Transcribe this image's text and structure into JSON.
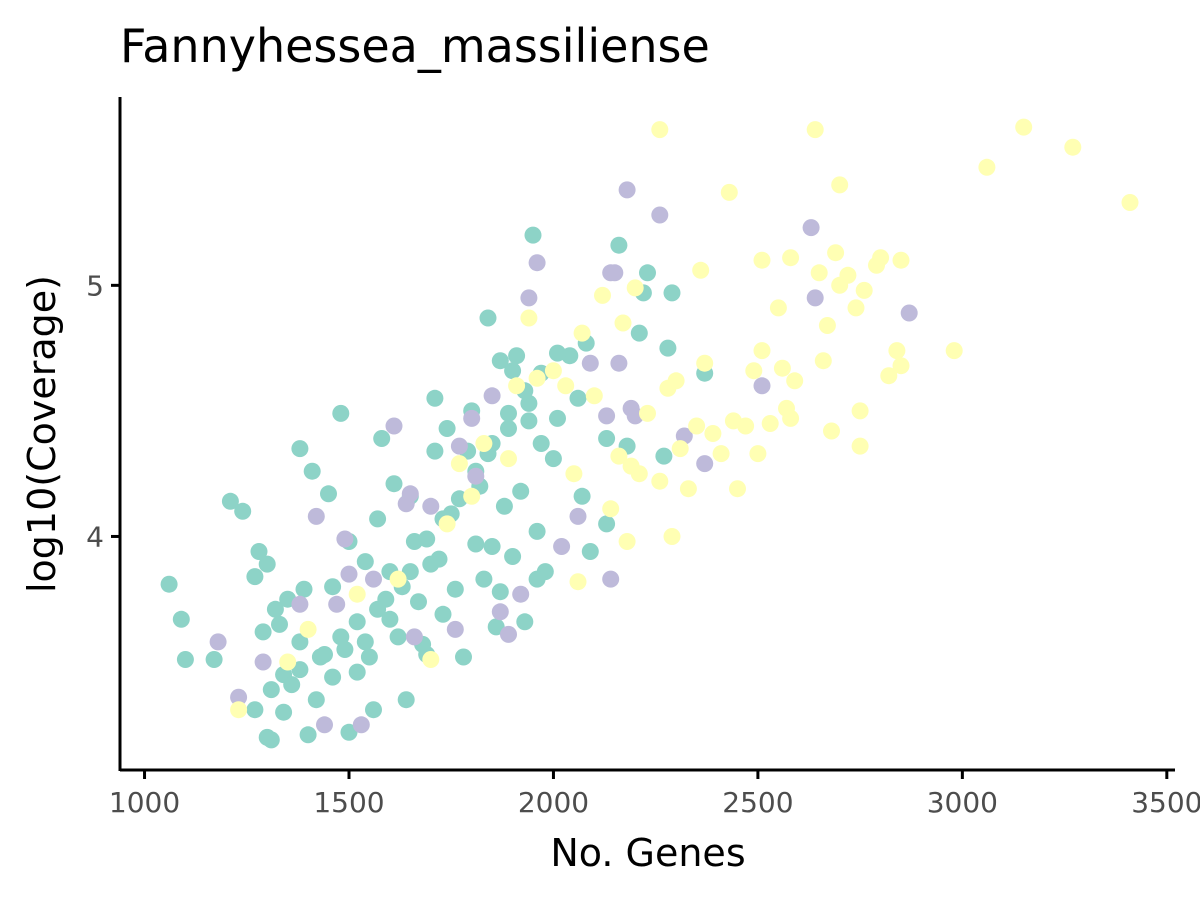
{
  "chart_data": {
    "type": "scatter",
    "title": "Fannyhessea_massiliense",
    "xlabel": "No. Genes",
    "ylabel": "log10(Coverage)",
    "xlim": [
      940,
      3520
    ],
    "ylim": [
      3.07,
      5.75
    ],
    "xticks": [
      1000,
      1500,
      2000,
      2500,
      3000,
      3500
    ],
    "xtick_labels": [
      "1000",
      "1500",
      "2000",
      "2500",
      "3000",
      "3500"
    ],
    "yticks": [
      4,
      5
    ],
    "ytick_labels": [
      "4",
      "5"
    ],
    "grid": false,
    "legend": "none",
    "series": [
      {
        "color": "#8dd3c7",
        "points": [
          [
            1060,
            3.81
          ],
          [
            1090,
            3.67
          ],
          [
            1100,
            3.51
          ],
          [
            1170,
            3.51
          ],
          [
            1210,
            4.14
          ],
          [
            1240,
            4.1
          ],
          [
            1270,
            3.84
          ],
          [
            1280,
            3.94
          ],
          [
            1300,
            3.89
          ],
          [
            1290,
            3.62
          ],
          [
            1270,
            3.31
          ],
          [
            1300,
            3.2
          ],
          [
            1310,
            3.19
          ],
          [
            1320,
            3.71
          ],
          [
            1350,
            3.75
          ],
          [
            1330,
            3.65
          ],
          [
            1340,
            3.45
          ],
          [
            1360,
            3.41
          ],
          [
            1380,
            3.58
          ],
          [
            1390,
            3.79
          ],
          [
            1380,
            4.35
          ],
          [
            1410,
            4.26
          ],
          [
            1450,
            4.17
          ],
          [
            1400,
            3.21
          ],
          [
            1420,
            3.35
          ],
          [
            1440,
            3.53
          ],
          [
            1460,
            3.8
          ],
          [
            1480,
            4.49
          ],
          [
            1490,
            3.55
          ],
          [
            1500,
            3.22
          ],
          [
            1500,
            3.98
          ],
          [
            1520,
            3.66
          ],
          [
            1540,
            3.9
          ],
          [
            1560,
            3.31
          ],
          [
            1570,
            4.07
          ],
          [
            1580,
            4.39
          ],
          [
            1590,
            3.75
          ],
          [
            1600,
            3.86
          ],
          [
            1610,
            4.21
          ],
          [
            1620,
            3.6
          ],
          [
            1640,
            3.35
          ],
          [
            1650,
            4.16
          ],
          [
            1660,
            3.98
          ],
          [
            1670,
            3.74
          ],
          [
            1690,
            3.53
          ],
          [
            1700,
            3.89
          ],
          [
            1710,
            4.55
          ],
          [
            1710,
            4.34
          ],
          [
            1720,
            3.91
          ],
          [
            1740,
            4.43
          ],
          [
            1750,
            4.09
          ],
          [
            1760,
            3.79
          ],
          [
            1780,
            3.52
          ],
          [
            1790,
            4.34
          ],
          [
            1800,
            4.5
          ],
          [
            1810,
            3.97
          ],
          [
            1820,
            4.2
          ],
          [
            1830,
            3.83
          ],
          [
            1840,
            4.33
          ],
          [
            1840,
            4.87
          ],
          [
            1860,
            3.64
          ],
          [
            1870,
            4.7
          ],
          [
            1880,
            4.12
          ],
          [
            1890,
            4.43
          ],
          [
            1900,
            4.66
          ],
          [
            1900,
            3.92
          ],
          [
            1910,
            4.72
          ],
          [
            1920,
            4.18
          ],
          [
            1930,
            3.66
          ],
          [
            1940,
            4.53
          ],
          [
            1940,
            4.46
          ],
          [
            1950,
            5.2
          ],
          [
            1960,
            4.02
          ],
          [
            1970,
            4.37
          ],
          [
            1980,
            3.86
          ],
          [
            2000,
            4.31
          ],
          [
            2010,
            4.47
          ],
          [
            2040,
            4.72
          ],
          [
            2060,
            4.55
          ],
          [
            2070,
            4.16
          ],
          [
            2080,
            4.77
          ],
          [
            2090,
            3.94
          ],
          [
            2130,
            4.39
          ],
          [
            2130,
            4.05
          ],
          [
            2160,
            5.16
          ],
          [
            2180,
            4.36
          ],
          [
            2210,
            4.81
          ],
          [
            2220,
            4.97
          ],
          [
            2230,
            5.05
          ],
          [
            2270,
            4.32
          ],
          [
            2280,
            4.75
          ],
          [
            2290,
            4.97
          ],
          [
            2370,
            4.65
          ],
          [
            1960,
            3.83
          ],
          [
            1850,
            3.96
          ],
          [
            1870,
            3.78
          ],
          [
            1730,
            3.69
          ],
          [
            1680,
            3.57
          ],
          [
            1630,
            3.8
          ],
          [
            1570,
            3.71
          ],
          [
            1540,
            3.58
          ],
          [
            1520,
            3.46
          ],
          [
            1480,
            3.6
          ],
          [
            1460,
            3.44
          ],
          [
            1430,
            3.52
          ],
          [
            1380,
            3.47
          ],
          [
            1340,
            3.3
          ],
          [
            1310,
            3.39
          ],
          [
            1550,
            3.52
          ],
          [
            1600,
            3.67
          ],
          [
            1650,
            3.86
          ],
          [
            1690,
            3.99
          ],
          [
            1730,
            4.07
          ],
          [
            1770,
            4.15
          ],
          [
            1810,
            4.26
          ],
          [
            1850,
            4.37
          ],
          [
            1890,
            4.49
          ],
          [
            1930,
            4.58
          ],
          [
            1970,
            4.65
          ],
          [
            2010,
            4.73
          ]
        ]
      },
      {
        "color": "#bebada",
        "points": [
          [
            1180,
            3.58
          ],
          [
            1230,
            3.36
          ],
          [
            1290,
            3.5
          ],
          [
            1380,
            3.73
          ],
          [
            1420,
            4.08
          ],
          [
            1440,
            3.25
          ],
          [
            1470,
            3.73
          ],
          [
            1490,
            3.99
          ],
          [
            1500,
            3.85
          ],
          [
            1530,
            3.25
          ],
          [
            1560,
            3.83
          ],
          [
            1610,
            4.44
          ],
          [
            1640,
            4.13
          ],
          [
            1650,
            4.17
          ],
          [
            1660,
            3.6
          ],
          [
            1700,
            4.12
          ],
          [
            1760,
            3.63
          ],
          [
            1770,
            4.36
          ],
          [
            1800,
            4.47
          ],
          [
            1810,
            4.24
          ],
          [
            1850,
            4.56
          ],
          [
            1870,
            3.7
          ],
          [
            1890,
            3.61
          ],
          [
            1920,
            3.77
          ],
          [
            1940,
            4.95
          ],
          [
            1960,
            5.09
          ],
          [
            2020,
            3.96
          ],
          [
            2060,
            4.08
          ],
          [
            2090,
            4.69
          ],
          [
            2130,
            4.48
          ],
          [
            2140,
            5.05
          ],
          [
            2150,
            5.05
          ],
          [
            2160,
            4.69
          ],
          [
            2180,
            5.38
          ],
          [
            2190,
            4.51
          ],
          [
            2200,
            4.48
          ],
          [
            2260,
            5.28
          ],
          [
            2320,
            4.4
          ],
          [
            2370,
            4.29
          ],
          [
            2510,
            4.6
          ],
          [
            2630,
            5.23
          ],
          [
            2640,
            4.95
          ],
          [
            2870,
            4.89
          ],
          [
            2140,
            3.83
          ]
        ]
      },
      {
        "color": "#ffffb3",
        "points": [
          [
            1230,
            3.31
          ],
          [
            1350,
            3.5
          ],
          [
            1400,
            3.63
          ],
          [
            1520,
            3.77
          ],
          [
            1620,
            3.83
          ],
          [
            1700,
            3.51
          ],
          [
            1740,
            4.05
          ],
          [
            1770,
            4.29
          ],
          [
            1800,
            4.16
          ],
          [
            1830,
            4.37
          ],
          [
            1890,
            4.31
          ],
          [
            1910,
            4.6
          ],
          [
            1940,
            4.87
          ],
          [
            1960,
            4.63
          ],
          [
            2000,
            4.66
          ],
          [
            2030,
            4.6
          ],
          [
            2050,
            4.25
          ],
          [
            2060,
            3.82
          ],
          [
            2070,
            4.81
          ],
          [
            2100,
            4.56
          ],
          [
            2120,
            4.96
          ],
          [
            2140,
            4.11
          ],
          [
            2160,
            4.32
          ],
          [
            2170,
            4.85
          ],
          [
            2180,
            3.98
          ],
          [
            2190,
            4.28
          ],
          [
            2200,
            4.99
          ],
          [
            2210,
            4.25
          ],
          [
            2230,
            4.49
          ],
          [
            2260,
            5.62
          ],
          [
            2260,
            4.22
          ],
          [
            2280,
            4.59
          ],
          [
            2290,
            4.0
          ],
          [
            2300,
            4.62
          ],
          [
            2310,
            4.35
          ],
          [
            2330,
            4.19
          ],
          [
            2350,
            4.44
          ],
          [
            2360,
            5.06
          ],
          [
            2370,
            4.69
          ],
          [
            2390,
            4.41
          ],
          [
            2410,
            4.33
          ],
          [
            2430,
            5.37
          ],
          [
            2440,
            4.46
          ],
          [
            2450,
            4.19
          ],
          [
            2470,
            4.44
          ],
          [
            2490,
            4.66
          ],
          [
            2500,
            4.33
          ],
          [
            2510,
            4.74
          ],
          [
            2510,
            5.1
          ],
          [
            2530,
            4.45
          ],
          [
            2550,
            4.91
          ],
          [
            2560,
            4.67
          ],
          [
            2570,
            4.51
          ],
          [
            2580,
            5.11
          ],
          [
            2580,
            4.47
          ],
          [
            2590,
            4.62
          ],
          [
            2640,
            5.62
          ],
          [
            2650,
            5.05
          ],
          [
            2660,
            4.7
          ],
          [
            2670,
            4.84
          ],
          [
            2680,
            4.42
          ],
          [
            2690,
            5.13
          ],
          [
            2700,
            5.4
          ],
          [
            2700,
            5.0
          ],
          [
            2720,
            5.04
          ],
          [
            2740,
            4.91
          ],
          [
            2750,
            4.5
          ],
          [
            2750,
            4.36
          ],
          [
            2760,
            4.98
          ],
          [
            2790,
            5.08
          ],
          [
            2800,
            5.11
          ],
          [
            2820,
            4.64
          ],
          [
            2840,
            4.74
          ],
          [
            2850,
            4.68
          ],
          [
            2850,
            5.1
          ],
          [
            2980,
            4.74
          ],
          [
            3060,
            5.47
          ],
          [
            3150,
            5.63
          ],
          [
            3270,
            5.55
          ],
          [
            3410,
            5.33
          ]
        ]
      }
    ]
  }
}
